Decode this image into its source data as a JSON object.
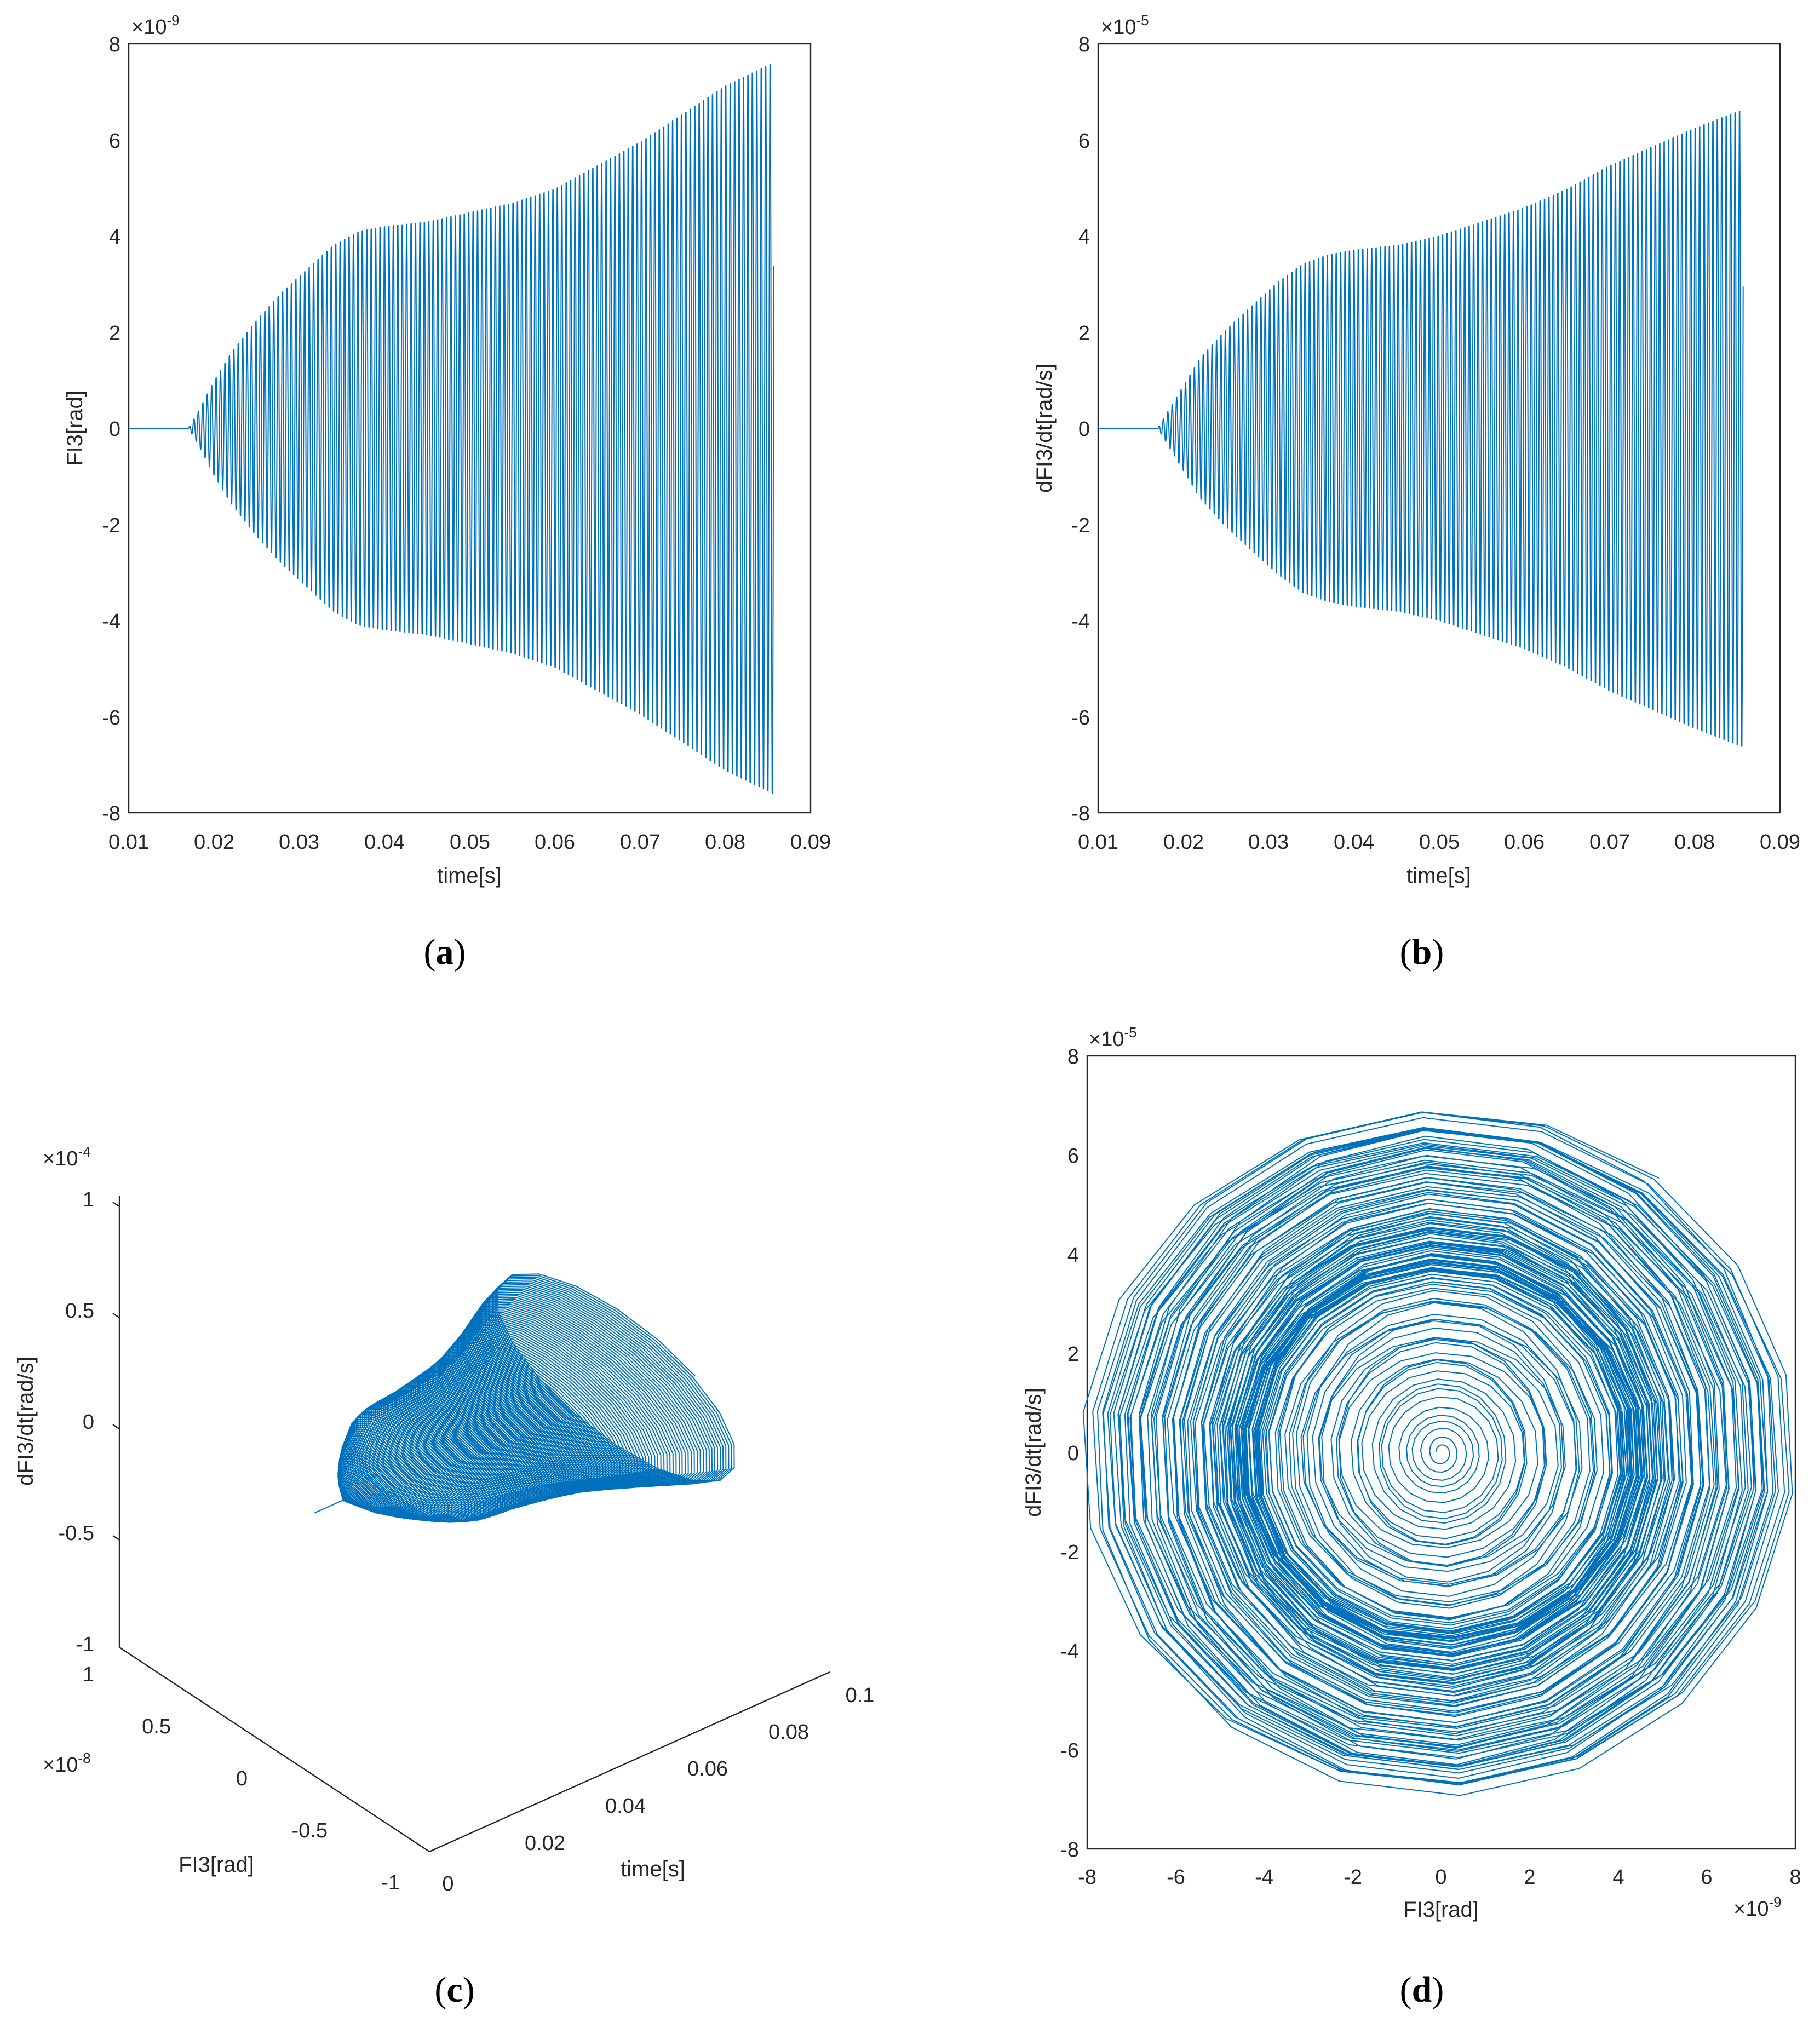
{
  "colors": {
    "series": "#0072BD",
    "axis": "#262626",
    "background": "#ffffff"
  },
  "chart_data": [
    {
      "id": "a",
      "caption": {
        "open": "(",
        "letter": "a",
        "close": ")"
      },
      "type": "line",
      "description_series": "FI3 oscillation growing in amplitude over time",
      "xlabel": "time[s]",
      "ylabel": "FI3[rad]",
      "xlim": [
        0.01,
        0.09
      ],
      "ylim": [
        -8,
        8
      ],
      "y_exponent_text": "×10",
      "y_exponent_power": "-9",
      "xticks": [
        0.01,
        0.02,
        0.03,
        0.04,
        0.05,
        0.06,
        0.07,
        0.08,
        0.09
      ],
      "xtick_labels": [
        "0.01",
        "0.02",
        "0.03",
        "0.04",
        "0.05",
        "0.06",
        "0.07",
        "0.08",
        "0.09"
      ],
      "yticks": [
        -8,
        -6,
        -4,
        -2,
        0,
        2,
        4,
        6,
        8
      ],
      "ytick_labels": [
        "-8",
        "-6",
        "-4",
        "-2",
        "0",
        "2",
        "4",
        "6",
        "8"
      ],
      "series": [
        {
          "name": "FI3",
          "t_start": 0.01,
          "t_onset": 0.017,
          "t_end": 0.0857,
          "period": 0.00052,
          "envelope_t": [
            0.017,
            0.018,
            0.02,
            0.022,
            0.025,
            0.028,
            0.031,
            0.034,
            0.037,
            0.04,
            0.045,
            0.05,
            0.055,
            0.06,
            0.065,
            0.07,
            0.075,
            0.08,
            0.0857
          ],
          "envelope_a": [
            0.0,
            0.3,
            1.0,
            1.6,
            2.3,
            2.9,
            3.4,
            3.9,
            4.2,
            4.3,
            4.4,
            4.6,
            4.8,
            5.1,
            5.6,
            6.1,
            6.7,
            7.3,
            7.8
          ]
        }
      ]
    },
    {
      "id": "b",
      "caption": {
        "open": "(",
        "letter": "b",
        "close": ")"
      },
      "type": "line",
      "xlabel": "time[s]",
      "ylabel": "dFI3/dt[rad/s]",
      "xlim": [
        0.01,
        0.09
      ],
      "ylim": [
        -8,
        8
      ],
      "y_exponent_text": "×10",
      "y_exponent_power": "-5",
      "xticks": [
        0.01,
        0.02,
        0.03,
        0.04,
        0.05,
        0.06,
        0.07,
        0.08,
        0.09
      ],
      "xtick_labels": [
        "0.01",
        "0.02",
        "0.03",
        "0.04",
        "0.05",
        "0.06",
        "0.07",
        "0.08",
        "0.09"
      ],
      "yticks": [
        -8,
        -6,
        -4,
        -2,
        0,
        2,
        4,
        6,
        8
      ],
      "ytick_labels": [
        "-8",
        "-6",
        "-4",
        "-2",
        "0",
        "2",
        "4",
        "6",
        "8"
      ],
      "series": [
        {
          "name": "dFI3/dt",
          "t_start": 0.01,
          "t_onset": 0.017,
          "t_end": 0.0857,
          "period": 0.00052,
          "envelope_t": [
            0.017,
            0.018,
            0.02,
            0.022,
            0.025,
            0.028,
            0.031,
            0.034,
            0.037,
            0.04,
            0.045,
            0.05,
            0.055,
            0.06,
            0.065,
            0.07,
            0.075,
            0.08,
            0.0857
          ],
          "envelope_a": [
            0.0,
            0.3,
            0.9,
            1.5,
            2.1,
            2.6,
            3.1,
            3.5,
            3.7,
            3.8,
            3.9,
            4.1,
            4.4,
            4.7,
            5.1,
            5.6,
            6.0,
            6.4,
            6.8
          ]
        }
      ]
    },
    {
      "id": "c",
      "caption": {
        "open": "(",
        "letter": "c",
        "close": ")"
      },
      "type": "line3d",
      "xlabel": "time[s]",
      "ylabel": "FI3[rad]",
      "zlabel": "dFI3/dt[rad/s]",
      "xlim": [
        0,
        0.1
      ],
      "ylim": [
        -1,
        1
      ],
      "zlim": [
        -1,
        1
      ],
      "y_exponent_text": "×10",
      "y_exponent_power": "-8",
      "z_exponent_text": "×10",
      "z_exponent_power": "-4",
      "xtick_labels": [
        "0",
        "0.02",
        "0.04",
        "0.06",
        "0.08",
        "0.1"
      ],
      "xticks": [
        0,
        0.02,
        0.04,
        0.06,
        0.08,
        0.1
      ],
      "ytick_labels": [
        "-1",
        "-0.5",
        "0",
        "0.5",
        "1"
      ],
      "yticks": [
        -1,
        -0.5,
        0,
        0.5,
        1
      ],
      "ztick_labels": [
        "-1",
        "-0.5",
        "0",
        "0.5",
        "1"
      ],
      "zticks": [
        -1,
        -0.5,
        0,
        0.5,
        1
      ],
      "series": [
        {
          "name": "trajectory (time, FI3, dFI3/dt)"
        }
      ]
    },
    {
      "id": "d",
      "caption": {
        "open": "(",
        "letter": "d",
        "close": ")"
      },
      "type": "line",
      "description_series": "phase portrait spiral",
      "xlabel": "FI3[rad]",
      "ylabel": "dFI3/dt[rad/s]",
      "xlim": [
        -8,
        8
      ],
      "ylim": [
        -8,
        8
      ],
      "x_exponent_text": "×10",
      "x_exponent_power": "-9",
      "y_exponent_text": "×10",
      "y_exponent_power": "-5",
      "xticks": [
        -8,
        -6,
        -4,
        -2,
        0,
        2,
        4,
        6,
        8
      ],
      "xtick_labels": [
        "-8",
        "-6",
        "-4",
        "-2",
        "0",
        "2",
        "4",
        "6",
        "8"
      ],
      "yticks": [
        -8,
        -6,
        -4,
        -2,
        0,
        2,
        4,
        6,
        8
      ],
      "ytick_labels": [
        "-8",
        "-6",
        "-4",
        "-2",
        "0",
        "2",
        "4",
        "6",
        "8"
      ],
      "series": [
        {
          "name": "phase portrait"
        }
      ]
    }
  ]
}
